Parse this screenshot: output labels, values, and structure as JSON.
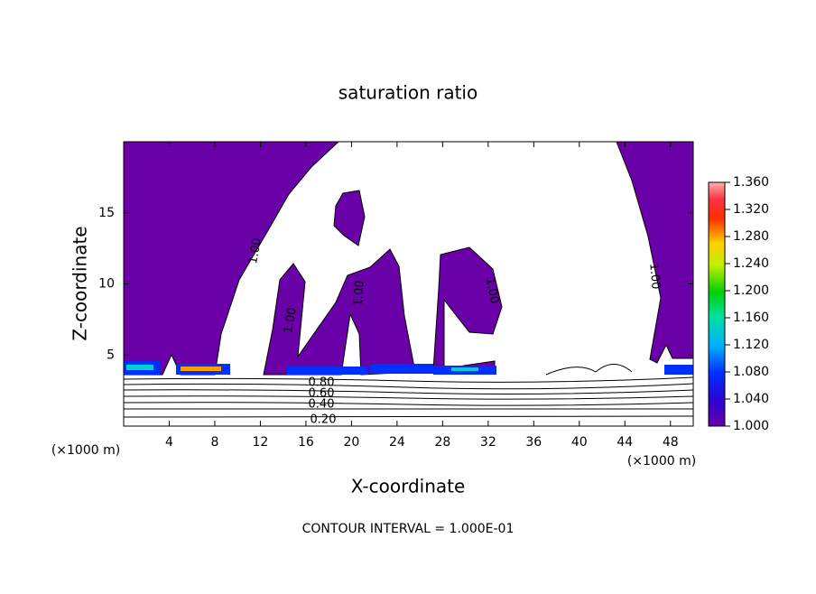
{
  "chart_data": {
    "type": "contour",
    "title": "saturation ratio",
    "x_label": "X-coordinate",
    "y_label": "Z-coordinate",
    "x_unit": "(×1000 m)",
    "footer": "CONTOUR INTERVAL = 1.000E-01",
    "xlim": [
      0,
      50
    ],
    "xticks": [
      4,
      8,
      12,
      16,
      20,
      24,
      28,
      32,
      36,
      40,
      44,
      48
    ],
    "ylim": [
      0,
      20
    ],
    "yticks": [
      5,
      10,
      15
    ],
    "colorbar": {
      "lim": [
        1,
        1.36
      ],
      "ticks": [
        {
          "value": 1,
          "label": "1.000"
        },
        {
          "value": 1.04,
          "label": "1.040"
        },
        {
          "value": 1.08,
          "label": "1.080"
        },
        {
          "value": 1.12,
          "label": "1.120"
        },
        {
          "value": 1.16,
          "label": "1.160"
        },
        {
          "value": 1.2,
          "label": "1.200"
        },
        {
          "value": 1.24,
          "label": "1.240"
        },
        {
          "value": 1.28,
          "label": "1.280"
        },
        {
          "value": 1.32,
          "label": "1.320"
        },
        {
          "value": 1.36,
          "label": "1.360"
        }
      ]
    },
    "contour_labels": [
      "1.00",
      "1.00",
      "1.00",
      "1.00",
      "1.00",
      "0.80",
      "0.60",
      "0.40",
      "0.20"
    ]
  }
}
